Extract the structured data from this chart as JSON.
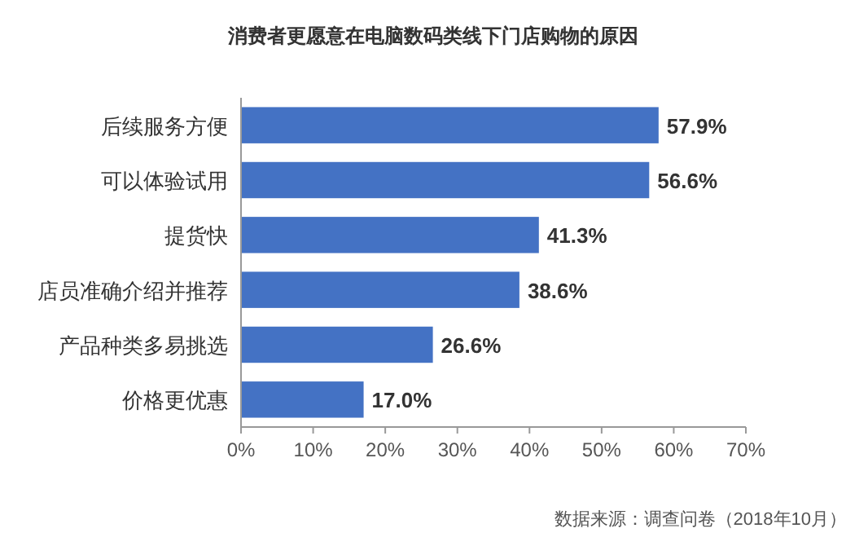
{
  "chart_data": {
    "type": "bar",
    "orientation": "horizontal",
    "title": "消费者更愿意在电脑数码类线下门店购物的原因",
    "categories": [
      "后续服务方便",
      "可以体验试用",
      "提货快",
      "店员准确介绍并推荐",
      "产品种类多易挑选",
      "价格更优惠"
    ],
    "values": [
      57.9,
      56.6,
      41.3,
      38.6,
      26.6,
      17.0
    ],
    "value_labels": [
      "57.9%",
      "56.6%",
      "41.3%",
      "38.6%",
      "26.6%",
      "17.0%"
    ],
    "color": "#4472c4",
    "xlim": [
      0,
      70
    ],
    "xticks": [
      {
        "value": 0,
        "label": "0%"
      },
      {
        "value": 10,
        "label": "10%"
      },
      {
        "value": 20,
        "label": "20%"
      },
      {
        "value": 30,
        "label": "30%"
      },
      {
        "value": 40,
        "label": "40%"
      },
      {
        "value": 50,
        "label": "50%"
      },
      {
        "value": 60,
        "label": "60%"
      },
      {
        "value": 70,
        "label": "70%"
      }
    ],
    "grid": false,
    "annotations": [
      "数据来源：调查问卷（2018年10月）"
    ]
  }
}
